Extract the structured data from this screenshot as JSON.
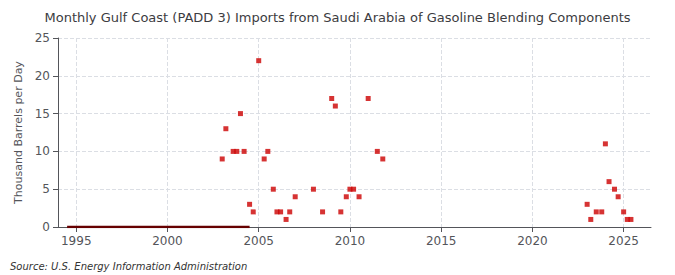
{
  "chart_data": {
    "type": "scatter",
    "title": "Monthly Gulf Coast (PADD 3) Imports from Saudi Arabia of Gasoline Blending Components",
    "ylabel": "Thousand Barrels per Day",
    "annotations": [
      "Source: U.S. Energy Information Administration"
    ],
    "xlim": [
      1994.0,
      2026.5
    ],
    "ylim": [
      0,
      25
    ],
    "xticks": [
      1995,
      2000,
      2005,
      2010,
      2015,
      2020,
      2025
    ],
    "yticks": [
      0,
      5,
      10,
      15,
      20,
      25
    ],
    "grid": true,
    "series": [
      {
        "type": "line",
        "color": "#660000",
        "line_style": "solid",
        "x": [
          1994.5,
          2004.5
        ],
        "values": [
          0,
          0
        ]
      },
      {
        "type": "scatter",
        "color": "#cc0000",
        "marker": "square",
        "x": [
          2003.0,
          2003.2,
          2003.6,
          2003.8,
          2004.0,
          2004.2,
          2004.5,
          2004.7,
          2005.0,
          2005.3,
          2005.5,
          2005.8,
          2006.0,
          2006.2,
          2006.5,
          2006.7,
          2007.0,
          2008.0,
          2008.5,
          2009.0,
          2009.2,
          2009.5,
          2009.8,
          2010.0,
          2010.2,
          2010.5,
          2011.0,
          2011.5,
          2011.8,
          2023.0,
          2023.2,
          2023.5,
          2023.8,
          2024.0,
          2024.2,
          2024.5,
          2024.7,
          2025.0,
          2025.2,
          2025.4
        ],
        "values": [
          9,
          13,
          10,
          10,
          15,
          10,
          3,
          2,
          22,
          9,
          10,
          5,
          2,
          2,
          1,
          2,
          4,
          5,
          2,
          17,
          16,
          2,
          4,
          5,
          5,
          4,
          17,
          10,
          9,
          3,
          1,
          2,
          2,
          11,
          6,
          5,
          4,
          2,
          1,
          1
        ]
      }
    ]
  }
}
